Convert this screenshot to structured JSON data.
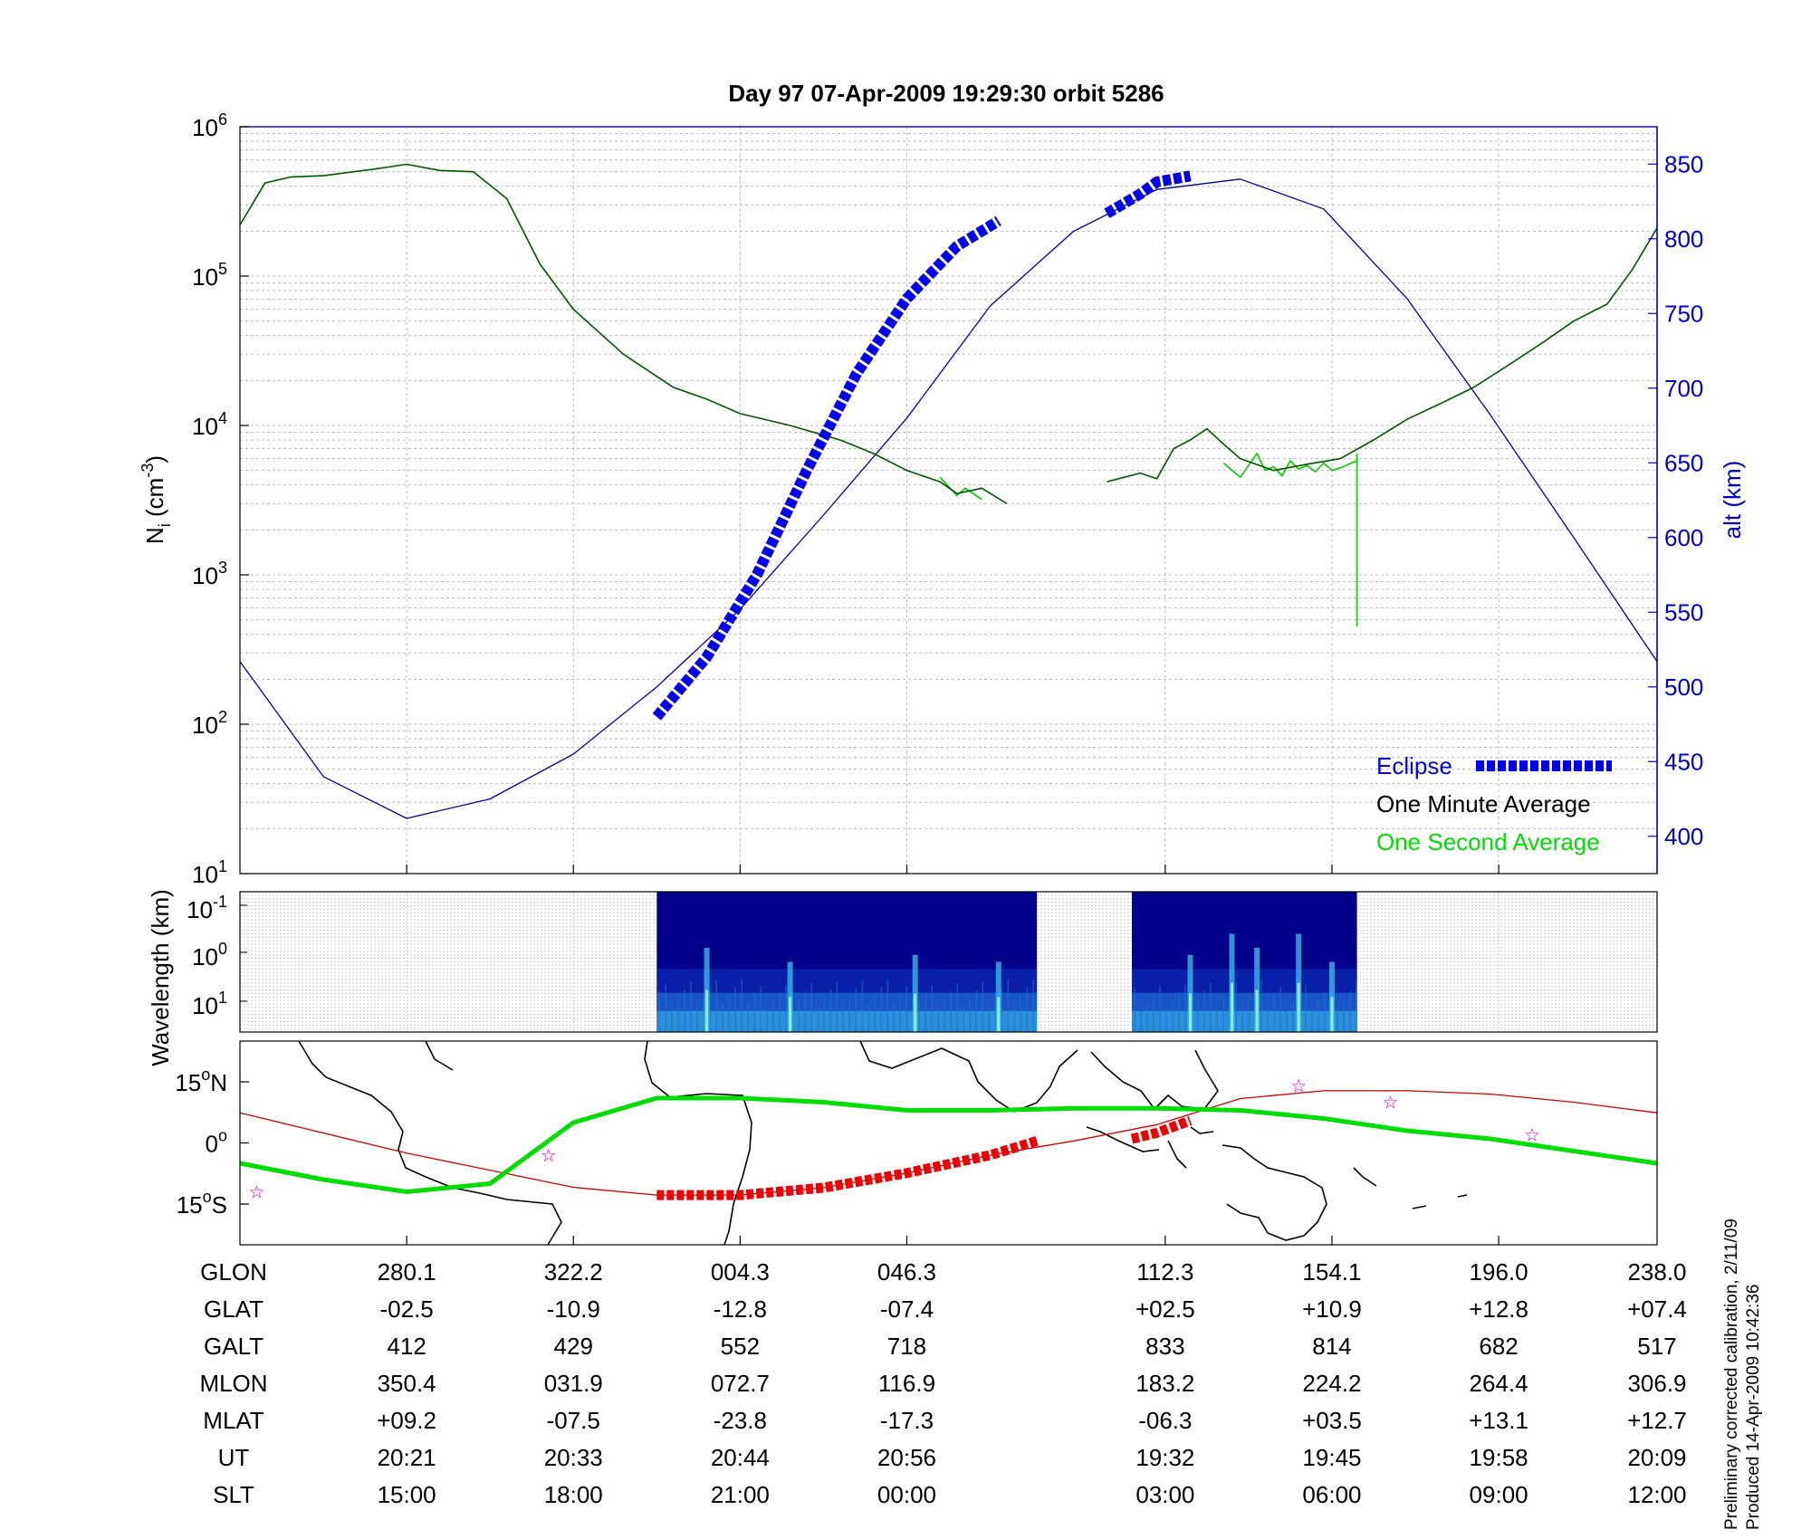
{
  "chart_data": [
    {
      "panel": "density-altitude",
      "type": "line",
      "title": "Day 97  07-Apr-2009 19:29:30   orbit 5286",
      "ylabel_left": "N",
      "ylabel_left_sub": "i",
      "ylabel_left_unit": "(cm",
      "ylabel_left_exp": "-3",
      "ylabel_left_close": ")",
      "ylabel_right": "alt (km)",
      "yscale_left": "log",
      "ylim_left": [
        10,
        1000000
      ],
      "left_ticks": [
        {
          "base": "10",
          "exp": "1",
          "value": 10
        },
        {
          "base": "10",
          "exp": "2",
          "value": 100
        },
        {
          "base": "10",
          "exp": "3",
          "value": 1000
        },
        {
          "base": "10",
          "exp": "4",
          "value": 10000
        },
        {
          "base": "10",
          "exp": "5",
          "value": 100000
        },
        {
          "base": "10",
          "exp": "6",
          "value": 1000000
        }
      ],
      "ylim_right": [
        375,
        875
      ],
      "right_ticks": [
        "400",
        "450",
        "500",
        "550",
        "600",
        "650",
        "700",
        "750",
        "800",
        "850"
      ],
      "grid": true,
      "colors": {
        "axis": "#000000",
        "right_axis": "#0000cc",
        "altitude": "#000099",
        "one_minute": "#005500",
        "one_second": "#00cc00",
        "eclipse": "#0000ee"
      },
      "legend": {
        "placement": "lower-right",
        "entries": [
          {
            "label": "Eclipse",
            "color": "#0000ee"
          },
          {
            "label": "One Minute Average",
            "color": "#000000"
          },
          {
            "label": "One Second Average",
            "color": "#00dd00"
          }
        ]
      },
      "x_ticks_ut": [
        "20:21",
        "20:33",
        "20:44",
        "20:56",
        "19:32",
        "19:45",
        "19:58",
        "20:09"
      ],
      "altitude_km": {
        "x": [
          0,
          0.5,
          1,
          1.5,
          2,
          2.5,
          3,
          3.5,
          4,
          4.5,
          5,
          5.5,
          6,
          6.5,
          7,
          7.5,
          8,
          8.5
        ],
        "y": [
          517,
          440,
          412,
          425,
          455,
          500,
          552,
          615,
          680,
          755,
          805,
          833,
          840,
          820,
          760,
          682,
          600,
          517
        ]
      },
      "density_one_minute": {
        "segments": [
          {
            "x": [
              0,
              0.15,
              0.3,
              0.5,
              0.8,
              1.0,
              1.2,
              1.4,
              1.6,
              1.8,
              2.0,
              2.3,
              2.6,
              2.8,
              3.0,
              3.3,
              3.6,
              3.8,
              4.0,
              4.2,
              4.3,
              4.45,
              4.6
            ],
            "y": [
              220000,
              420000,
              460000,
              470000,
              520000,
              560000,
              510000,
              500000,
              330000,
              120000,
              60000,
              30000,
              18000,
              15000,
              12000,
              10000,
              8000,
              6500,
              5000,
              4200,
              3500,
              3800,
              3000
            ]
          },
          {
            "x": [
              5.2,
              5.4,
              5.5,
              5.6,
              5.7,
              5.8,
              5.9,
              6.0,
              6.2,
              6.4,
              6.6,
              6.8,
              7.0,
              7.2,
              7.4,
              7.6,
              7.8,
              8.0,
              8.2,
              8.35,
              8.5
            ],
            "y": [
              4200,
              4800,
              4400,
              7000,
              8000,
              9500,
              7500,
              6000,
              5000,
              5500,
              6000,
              8000,
              11000,
              14000,
              18000,
              25000,
              35000,
              50000,
              65000,
              110000,
              210000
            ]
          }
        ]
      },
      "density_one_second": {
        "segments": [
          {
            "x": [
              4.2,
              4.3,
              4.35,
              4.45
            ],
            "y": [
              4500,
              3400,
              3800,
              3200
            ]
          },
          {
            "x": [
              5.9,
              6.0,
              6.1,
              6.15,
              6.2,
              6.25,
              6.3,
              6.35,
              6.4,
              6.45,
              6.5,
              6.55,
              6.6,
              6.65,
              6.7
            ],
            "y": [
              5600,
              4500,
              6500,
              5000,
              5300,
              4600,
              5800,
              5100,
              5400,
              4900,
              5600,
              5000,
              5200,
              5500,
              5800
            ]
          },
          {
            "x": [
              6.7,
              6.7
            ],
            "y": [
              6500,
              450
            ]
          }
        ]
      },
      "eclipse_altitude_km": {
        "segments": [
          {
            "x": [
              2.5,
              2.8,
              3.1,
              3.4,
              3.7,
              4.0,
              4.3,
              4.55
            ],
            "y": [
              480,
              520,
              575,
              645,
              710,
              760,
              795,
              812
            ]
          },
          {
            "x": [
              5.2,
              5.4,
              5.5,
              5.7
            ],
            "y": [
              817,
              830,
              838,
              842
            ]
          }
        ]
      }
    },
    {
      "panel": "spectrogram",
      "type": "heatmap",
      "ylabel": "Wavelength (km)",
      "ticks": [
        {
          "base": "10",
          "exp": "-1"
        },
        {
          "base": "10",
          "exp": "0"
        },
        {
          "base": "10",
          "exp": "1"
        }
      ],
      "x_extent": [
        0,
        8.5
      ],
      "data_segments_x": [
        [
          2.5,
          4.78
        ],
        [
          5.35,
          6.7
        ]
      ],
      "colormap": [
        "#00008b",
        "#0a2db4",
        "#1f6ed4",
        "#39b7e6",
        "#8ff0c6"
      ],
      "intensity_columns": [
        {
          "x": 2.8,
          "level": 0.6
        },
        {
          "x": 3.3,
          "level": 0.5
        },
        {
          "x": 4.05,
          "level": 0.55
        },
        {
          "x": 4.55,
          "level": 0.5
        },
        {
          "x": 5.7,
          "level": 0.55
        },
        {
          "x": 5.95,
          "level": 0.7
        },
        {
          "x": 6.1,
          "level": 0.6
        },
        {
          "x": 6.35,
          "level": 0.7
        },
        {
          "x": 6.55,
          "level": 0.5
        }
      ]
    },
    {
      "panel": "ground-track-map",
      "type": "line",
      "yticks": [
        {
          "num": "15",
          "deg": "o",
          "hem": "N",
          "lat": 15
        },
        {
          "num": "0",
          "deg": "o",
          "hem": "",
          "lat": 0
        },
        {
          "num": "15",
          "deg": "o",
          "hem": "S",
          "lat": -15
        }
      ],
      "ylim": [
        -25,
        25
      ],
      "colors": {
        "orbit": "#cc0000",
        "eclipse_track": "#ee0000",
        "magnetic_equator": "#00dd00",
        "stars": "#cc00cc"
      },
      "orbit_track_lat": {
        "x": [
          0,
          1,
          2,
          2.5,
          3,
          3.5,
          4,
          4.5,
          5,
          5.5,
          6,
          6.5,
          7,
          7.5,
          8,
          8.5
        ],
        "y": [
          7.4,
          -2.5,
          -10.9,
          -12.8,
          -12.8,
          -11,
          -7.4,
          -3,
          0.5,
          4.5,
          10.9,
          12.8,
          12.8,
          12,
          10,
          7.4
        ]
      },
      "eclipse_track_lat": {
        "segments": [
          {
            "x": [
              2.5,
              3.0,
              3.5,
              4.0,
              4.5,
              4.78
            ],
            "y": [
              -12.8,
              -12.8,
              -11,
              -7.4,
              -3,
              0.5
            ]
          },
          {
            "x": [
              5.35,
              5.5,
              5.7
            ],
            "y": [
              1.0,
              2.5,
              5.5
            ]
          }
        ]
      },
      "magnetic_equator_lat": {
        "x": [
          0,
          0.5,
          1.0,
          1.5,
          2.0,
          2.5,
          3.0,
          3.5,
          4.0,
          4.5,
          5.0,
          5.5,
          6.0,
          6.5,
          7.0,
          7.5,
          8.0,
          8.5
        ],
        "y": [
          -5,
          -9,
          -12,
          -10,
          5,
          11,
          11,
          10,
          8,
          8,
          8.5,
          8.5,
          8,
          6,
          3,
          1,
          -2,
          -5
        ]
      },
      "stars": [
        {
          "x": 0.1,
          "y": -12
        },
        {
          "x": 1.85,
          "y": -3
        },
        {
          "x": 6.35,
          "y": 14
        },
        {
          "x": 6.9,
          "y": 10
        },
        {
          "x": 7.75,
          "y": 2
        }
      ]
    },
    {
      "panel": "orbit-table",
      "type": "table",
      "row_labels": [
        "GLON",
        "GLAT",
        "GALT",
        "MLON",
        "MLAT",
        "UT",
        "SLT"
      ],
      "columns": [
        [
          "280.1",
          "-02.5",
          "412",
          "350.4",
          "+09.2",
          "20:21",
          "15:00"
        ],
        [
          "322.2",
          "-10.9",
          "429",
          "031.9",
          "-07.5",
          "20:33",
          "18:00"
        ],
        [
          "004.3",
          "-12.8",
          "552",
          "072.7",
          "-23.8",
          "20:44",
          "21:00"
        ],
        [
          "046.3",
          "-07.4",
          "718",
          "116.9",
          "-17.3",
          "20:56",
          "00:00"
        ],
        [
          "112.3",
          "+02.5",
          "833",
          "183.2",
          "-06.3",
          "19:32",
          "03:00"
        ],
        [
          "154.1",
          "+10.9",
          "814",
          "224.2",
          "+03.5",
          "19:45",
          "06:00"
        ],
        [
          "196.0",
          "+12.8",
          "682",
          "264.4",
          "+13.1",
          "19:58",
          "09:00"
        ],
        [
          "238.0",
          "+07.4",
          "517",
          "306.9",
          "+12.7",
          "20:09",
          "12:00"
        ]
      ],
      "column_x": [
        1,
        2,
        3,
        4,
        5.55,
        6.55,
        7.55,
        8.55
      ]
    }
  ],
  "footer": {
    "line1": "Preliminary corrected calibration, 2/11/09",
    "line2": "Produced 14-Apr-2009 10:42:36"
  }
}
